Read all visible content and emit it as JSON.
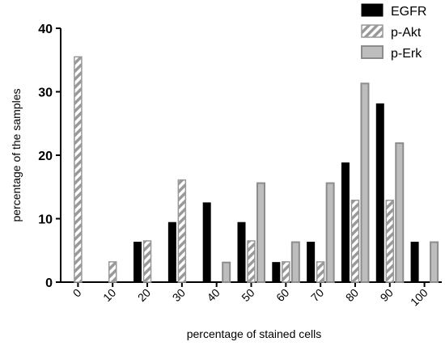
{
  "chart_data": {
    "type": "bar",
    "title": "",
    "xlabel": "percentage of stained cells",
    "ylabel": "percentage of the samples",
    "categories": [
      "0",
      "10",
      "20",
      "30",
      "40",
      "50",
      "60",
      "70",
      "80",
      "90",
      "100"
    ],
    "ylim": [
      0,
      40
    ],
    "yticks": [
      0,
      10,
      20,
      30,
      40
    ],
    "grid": false,
    "legend_position": "top-right",
    "series": [
      {
        "name": "EGFR",
        "values": [
          0,
          0,
          6.3,
          9.4,
          12.5,
          9.4,
          3.1,
          6.3,
          18.8,
          28.1,
          6.3
        ],
        "color": "#000000",
        "pattern": "solid"
      },
      {
        "name": "p-Akt",
        "values": [
          35.5,
          3.2,
          6.5,
          16.1,
          0,
          6.5,
          3.2,
          3.2,
          12.9,
          12.9,
          0
        ],
        "color": "#999999",
        "pattern": "diagonal-hatch"
      },
      {
        "name": "p-Erk",
        "values": [
          0,
          0,
          0,
          0,
          3.1,
          15.6,
          6.3,
          15.6,
          31.3,
          21.9,
          6.3
        ],
        "color": "#b3b3b3",
        "pattern": "light-gray-with-dark-border"
      }
    ]
  }
}
